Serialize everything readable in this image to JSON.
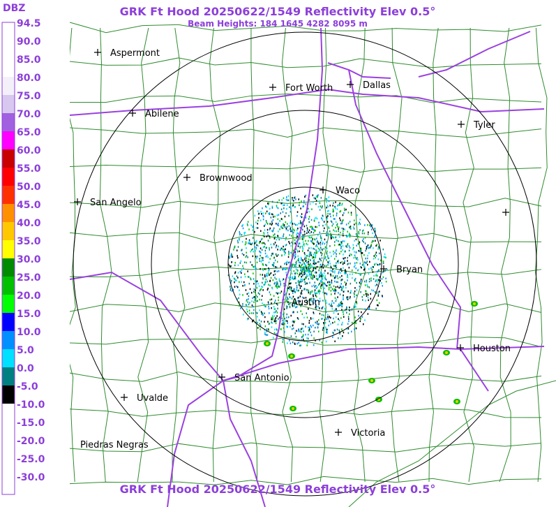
{
  "header": {
    "title": "GRK Ft Hood 20250622/1549 Reflectivity Elev 0.5°",
    "subtitle": "Beam Heights: 184 1645 4282 8095 m"
  },
  "footer": {
    "title": "GRK Ft Hood 20250622/1549 Reflectivity Elev 0.5°"
  },
  "legend": {
    "unit": "DBZ",
    "entries": [
      {
        "label": "94.5",
        "color": "#ffffff"
      },
      {
        "label": "90.0",
        "color": "#ffffff"
      },
      {
        "label": "85.0",
        "color": "#ffffff"
      },
      {
        "label": "80.0",
        "color": "#f4f0fa"
      },
      {
        "label": "75.0",
        "color": "#d8c8f0"
      },
      {
        "label": "70.0",
        "color": "#a060e0"
      },
      {
        "label": "65.0",
        "color": "#ff00ff"
      },
      {
        "label": "60.0",
        "color": "#c80000"
      },
      {
        "label": "55.0",
        "color": "#ff0000"
      },
      {
        "label": "50.0",
        "color": "#ff3000"
      },
      {
        "label": "45.0",
        "color": "#ff9000"
      },
      {
        "label": "40.0",
        "color": "#ffc800"
      },
      {
        "label": "35.0",
        "color": "#ffff00"
      },
      {
        "label": "30.0",
        "color": "#008c00"
      },
      {
        "label": "25.0",
        "color": "#00c000"
      },
      {
        "label": "20.0",
        "color": "#00ff00"
      },
      {
        "label": "15.0",
        "color": "#0000ff"
      },
      {
        "label": "10.0",
        "color": "#0090ff"
      },
      {
        "label": "5.0",
        "color": "#00e0ff"
      },
      {
        "label": "0.0",
        "color": "#008080"
      },
      {
        "label": "-5.0",
        "color": "#000000"
      },
      {
        "label": "-10.0",
        "color": "#ffffff"
      },
      {
        "label": "-15.0",
        "color": "#ffffff"
      },
      {
        "label": "-20.0",
        "color": "#ffffff"
      },
      {
        "label": "-25.0",
        "color": "#ffffff"
      },
      {
        "label": "-30.0",
        "color": "#ffffff"
      }
    ]
  },
  "cities": [
    {
      "name": "Aspermont",
      "marker": true
    },
    {
      "name": "Abilene",
      "marker": true
    },
    {
      "name": "Fort Worth",
      "marker": true
    },
    {
      "name": "Dallas",
      "marker": true
    },
    {
      "name": "Tyler",
      "marker": true
    },
    {
      "name": "Brownwood",
      "marker": true
    },
    {
      "name": "Waco",
      "marker": true
    },
    {
      "name": "San Angelo",
      "marker": true
    },
    {
      "name": "Bryan",
      "marker": true
    },
    {
      "name": "Austin",
      "marker": false
    },
    {
      "name": "Houston",
      "marker": true
    },
    {
      "name": "San Antonio",
      "marker": true
    },
    {
      "name": "Uvalde",
      "marker": true
    },
    {
      "name": "Victoria",
      "marker": true
    },
    {
      "name": "Piedras Negras",
      "marker": false
    }
  ]
}
